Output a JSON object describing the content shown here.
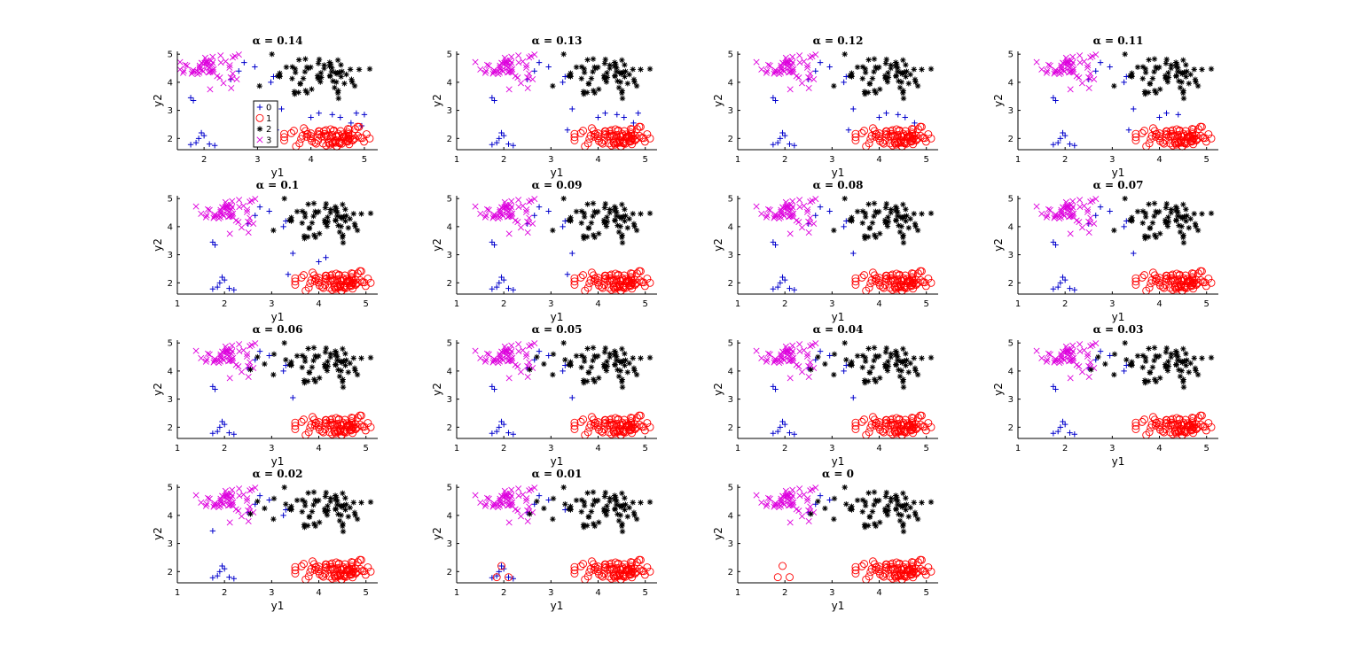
{
  "chart_data": {
    "type": "scatter",
    "layout": {
      "rows": 4,
      "cols": 4
    },
    "xlabel": "y1",
    "ylabel": "y2",
    "xlim": [
      1,
      5.25
    ],
    "ylim": [
      1.6,
      5.1
    ],
    "yticks": [
      2,
      3,
      4,
      5
    ],
    "legend": {
      "panel": 0,
      "placement": "bottom-middle",
      "entries": [
        "0",
        "1",
        "2",
        "3"
      ]
    },
    "series_styles": [
      {
        "name": "0",
        "marker": "plus",
        "color": "#0000cc"
      },
      {
        "name": "1",
        "marker": "circle",
        "color": "#ff0000"
      },
      {
        "name": "2",
        "marker": "star",
        "color": "#000000"
      },
      {
        "name": "3",
        "marker": "x",
        "color": "#dd00dd"
      }
    ],
    "panels": [
      {
        "title": "α = 0.14",
        "xticks": [
          2,
          3,
          4,
          5
        ],
        "xlim": [
          1.5,
          5.25
        ]
      },
      {
        "title": "α = 0.13",
        "xticks": [
          1,
          2,
          3,
          4,
          5
        ]
      },
      {
        "title": "α = 0.12",
        "xticks": [
          1,
          2,
          3,
          4,
          5
        ]
      },
      {
        "title": "α = 0.11",
        "xticks": [
          1,
          2,
          3,
          4,
          5
        ]
      },
      {
        "title": "α = 0.1",
        "xticks": [
          1,
          2,
          3,
          4,
          5
        ]
      },
      {
        "title": "α = 0.09",
        "xticks": [
          1,
          2,
          3,
          4,
          5
        ]
      },
      {
        "title": "α = 0.08",
        "xticks": [
          1,
          2,
          3,
          4,
          5
        ]
      },
      {
        "title": "α = 0.07",
        "xticks": [
          1,
          2,
          3,
          4,
          5
        ]
      },
      {
        "title": "α = 0.06",
        "xticks": [
          1,
          2,
          3,
          4,
          5
        ]
      },
      {
        "title": "α = 0.05",
        "xticks": [
          1,
          2,
          3,
          4,
          5
        ]
      },
      {
        "title": "α = 0.04",
        "xticks": [
          1,
          2,
          3,
          4,
          5
        ]
      },
      {
        "title": "α = 0.03",
        "xticks": [
          1,
          2,
          3,
          4,
          5
        ]
      },
      {
        "title": "α = 0.02",
        "xticks": [
          1,
          2,
          3,
          4,
          5
        ]
      },
      {
        "title": "α = 0.01",
        "xticks": [
          1,
          2,
          3,
          4,
          5
        ]
      },
      {
        "title": "α = 0",
        "xticks": [
          1,
          2,
          3,
          4,
          5
        ]
      }
    ],
    "clusters": {
      "magenta": {
        "center": [
          2.1,
          4.55
        ],
        "spread": [
          0.28,
          0.28
        ],
        "count": 55
      },
      "black": {
        "center": [
          4.2,
          4.15
        ],
        "spread": [
          0.42,
          0.35
        ],
        "count": 65
      },
      "red": {
        "center": [
          4.4,
          2.0
        ],
        "spread": [
          0.38,
          0.18
        ],
        "count": 90
      }
    },
    "blue_cross_points": [
      [
        2.75,
        4.7
      ],
      [
        2.95,
        4.55
      ],
      [
        2.65,
        4.4
      ],
      [
        2.5,
        4.1
      ],
      [
        3.3,
        4.2
      ],
      [
        3.25,
        4.0
      ],
      [
        1.75,
        3.45
      ],
      [
        1.8,
        3.35
      ],
      [
        3.45,
        3.05
      ],
      [
        1.95,
        2.2
      ],
      [
        2.0,
        2.1
      ],
      [
        1.9,
        2.0
      ],
      [
        1.85,
        1.85
      ],
      [
        1.75,
        1.78
      ],
      [
        2.2,
        1.75
      ],
      [
        2.1,
        1.8
      ],
      [
        3.35,
        2.3
      ],
      [
        4.0,
        2.75
      ],
      [
        4.15,
        2.9
      ],
      [
        4.4,
        2.85
      ],
      [
        4.55,
        2.75
      ],
      [
        4.75,
        2.55
      ],
      [
        4.85,
        2.9
      ],
      [
        4.95,
        2.45
      ],
      [
        5.0,
        2.85
      ]
    ]
  }
}
